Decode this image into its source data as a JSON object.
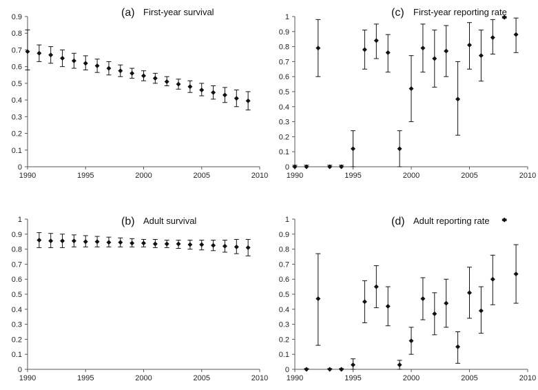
{
  "figure": {
    "x_ticks": [
      "1990",
      "1995",
      "2000",
      "2005",
      "2010"
    ],
    "x_tick_values": [
      1990,
      1995,
      2000,
      2005,
      2010
    ],
    "colors": {
      "marker": "#111111",
      "axis": "#555555"
    }
  },
  "chart_data": [
    {
      "type": "scatter",
      "id": "a",
      "label": "(a)",
      "title": "First-year survival",
      "xlim": [
        1990,
        2010
      ],
      "ylim": [
        0,
        0.9
      ],
      "y_ticks": [
        "0",
        "0.1",
        "0.2",
        "0.3",
        "0.4",
        "0.5",
        "0.6",
        "0.7",
        "0.8",
        "0.9"
      ],
      "y_tick_values": [
        0,
        0.1,
        0.2,
        0.3,
        0.4,
        0.5,
        0.6,
        0.7,
        0.8,
        0.9
      ],
      "error_bars": true,
      "points": [
        {
          "x": 1990,
          "y": 0.69,
          "lo": 0.58,
          "hi": 0.82
        },
        {
          "x": 1991,
          "y": 0.68,
          "lo": 0.63,
          "hi": 0.73
        },
        {
          "x": 1992,
          "y": 0.67,
          "lo": 0.62,
          "hi": 0.72
        },
        {
          "x": 1993,
          "y": 0.65,
          "lo": 0.6,
          "hi": 0.7
        },
        {
          "x": 1994,
          "y": 0.635,
          "lo": 0.59,
          "hi": 0.68
        },
        {
          "x": 1995,
          "y": 0.62,
          "lo": 0.58,
          "hi": 0.665
        },
        {
          "x": 1996,
          "y": 0.605,
          "lo": 0.565,
          "hi": 0.645
        },
        {
          "x": 1997,
          "y": 0.59,
          "lo": 0.55,
          "hi": 0.63
        },
        {
          "x": 1998,
          "y": 0.575,
          "lo": 0.54,
          "hi": 0.61
        },
        {
          "x": 1999,
          "y": 0.56,
          "lo": 0.53,
          "hi": 0.59
        },
        {
          "x": 2000,
          "y": 0.545,
          "lo": 0.515,
          "hi": 0.575
        },
        {
          "x": 2001,
          "y": 0.53,
          "lo": 0.5,
          "hi": 0.56
        },
        {
          "x": 2002,
          "y": 0.51,
          "lo": 0.485,
          "hi": 0.54
        },
        {
          "x": 2003,
          "y": 0.495,
          "lo": 0.465,
          "hi": 0.525
        },
        {
          "x": 2004,
          "y": 0.48,
          "lo": 0.445,
          "hi": 0.515
        },
        {
          "x": 2005,
          "y": 0.46,
          "lo": 0.425,
          "hi": 0.5
        },
        {
          "x": 2006,
          "y": 0.445,
          "lo": 0.405,
          "hi": 0.485
        },
        {
          "x": 2007,
          "y": 0.43,
          "lo": 0.385,
          "hi": 0.475
        },
        {
          "x": 2008,
          "y": 0.41,
          "lo": 0.36,
          "hi": 0.46
        },
        {
          "x": 2009,
          "y": 0.395,
          "lo": 0.34,
          "hi": 0.45
        }
      ]
    },
    {
      "type": "scatter",
      "id": "c",
      "label": "(c)",
      "title": "First-year reporting rate",
      "xlim": [
        1990,
        2010
      ],
      "ylim": [
        0,
        1
      ],
      "y_ticks": [
        "0",
        "0.1",
        "0.2",
        "0.3",
        "0.4",
        "0.5",
        "0.6",
        "0.7",
        "0.8",
        "0.9",
        "1"
      ],
      "y_tick_values": [
        0,
        0.1,
        0.2,
        0.3,
        0.4,
        0.5,
        0.6,
        0.7,
        0.8,
        0.9,
        1
      ],
      "error_bars": true,
      "points": [
        {
          "x": 1990,
          "y": 0.0,
          "lo": 0.0,
          "hi": 0.01
        },
        {
          "x": 1991,
          "y": 0.0,
          "lo": 0.0,
          "hi": 0.01
        },
        {
          "x": 1992,
          "y": 0.79,
          "lo": 0.6,
          "hi": 0.98
        },
        {
          "x": 1993,
          "y": 0.0,
          "lo": 0.0,
          "hi": 0.01
        },
        {
          "x": 1994,
          "y": 0.0,
          "lo": 0.0,
          "hi": 0.01
        },
        {
          "x": 1995,
          "y": 0.12,
          "lo": 0.0,
          "hi": 0.24
        },
        {
          "x": 1996,
          "y": 0.78,
          "lo": 0.65,
          "hi": 0.91
        },
        {
          "x": 1997,
          "y": 0.84,
          "lo": 0.72,
          "hi": 0.95
        },
        {
          "x": 1998,
          "y": 0.76,
          "lo": 0.63,
          "hi": 0.88
        },
        {
          "x": 1999,
          "y": 0.12,
          "lo": 0.0,
          "hi": 0.24
        },
        {
          "x": 2000,
          "y": 0.52,
          "lo": 0.3,
          "hi": 0.74
        },
        {
          "x": 2001,
          "y": 0.79,
          "lo": 0.63,
          "hi": 0.95
        },
        {
          "x": 2002,
          "y": 0.72,
          "lo": 0.53,
          "hi": 0.91
        },
        {
          "x": 2003,
          "y": 0.77,
          "lo": 0.6,
          "hi": 0.94
        },
        {
          "x": 2004,
          "y": 0.45,
          "lo": 0.21,
          "hi": 0.7
        },
        {
          "x": 2005,
          "y": 0.81,
          "lo": 0.65,
          "hi": 0.96
        },
        {
          "x": 2006,
          "y": 0.74,
          "lo": 0.57,
          "hi": 0.91
        },
        {
          "x": 2007,
          "y": 0.86,
          "lo": 0.75,
          "hi": 0.98
        },
        {
          "x": 2008,
          "y": 0.995,
          "lo": 0.99,
          "hi": 1.0
        },
        {
          "x": 2009,
          "y": 0.88,
          "lo": 0.76,
          "hi": 0.99
        }
      ]
    },
    {
      "type": "scatter",
      "id": "b",
      "label": "(b)",
      "title": "Adult survival",
      "xlim": [
        1990,
        2010
      ],
      "ylim": [
        0,
        1
      ],
      "y_ticks": [
        "0",
        "0.1",
        "0.2",
        "0.3",
        "0.4",
        "0.5",
        "0.6",
        "0.7",
        "0.8",
        "0.9",
        "1"
      ],
      "y_tick_values": [
        0,
        0.1,
        0.2,
        0.3,
        0.4,
        0.5,
        0.6,
        0.7,
        0.8,
        0.9,
        1
      ],
      "error_bars": true,
      "points": [
        {
          "x": 1991,
          "y": 0.86,
          "lo": 0.81,
          "hi": 0.91
        },
        {
          "x": 1992,
          "y": 0.855,
          "lo": 0.81,
          "hi": 0.905
        },
        {
          "x": 1993,
          "y": 0.855,
          "lo": 0.81,
          "hi": 0.9
        },
        {
          "x": 1994,
          "y": 0.855,
          "lo": 0.815,
          "hi": 0.895
        },
        {
          "x": 1995,
          "y": 0.85,
          "lo": 0.815,
          "hi": 0.89
        },
        {
          "x": 1996,
          "y": 0.85,
          "lo": 0.815,
          "hi": 0.885
        },
        {
          "x": 1997,
          "y": 0.845,
          "lo": 0.815,
          "hi": 0.88
        },
        {
          "x": 1998,
          "y": 0.845,
          "lo": 0.815,
          "hi": 0.875
        },
        {
          "x": 1999,
          "y": 0.84,
          "lo": 0.815,
          "hi": 0.87
        },
        {
          "x": 2000,
          "y": 0.84,
          "lo": 0.815,
          "hi": 0.865
        },
        {
          "x": 2001,
          "y": 0.835,
          "lo": 0.81,
          "hi": 0.865
        },
        {
          "x": 2002,
          "y": 0.835,
          "lo": 0.81,
          "hi": 0.86
        },
        {
          "x": 2003,
          "y": 0.835,
          "lo": 0.805,
          "hi": 0.86
        },
        {
          "x": 2004,
          "y": 0.83,
          "lo": 0.8,
          "hi": 0.86
        },
        {
          "x": 2005,
          "y": 0.83,
          "lo": 0.795,
          "hi": 0.86
        },
        {
          "x": 2006,
          "y": 0.825,
          "lo": 0.79,
          "hi": 0.86
        },
        {
          "x": 2007,
          "y": 0.82,
          "lo": 0.78,
          "hi": 0.86
        },
        {
          "x": 2008,
          "y": 0.815,
          "lo": 0.77,
          "hi": 0.865
        },
        {
          "x": 2009,
          "y": 0.81,
          "lo": 0.755,
          "hi": 0.865
        }
      ]
    },
    {
      "type": "scatter",
      "id": "d",
      "label": "(d)",
      "title": "Adult reporting rate",
      "xlim": [
        1990,
        2010
      ],
      "ylim": [
        0,
        1
      ],
      "y_ticks": [
        "0",
        "0.1",
        "0.2",
        "0.3",
        "0.4",
        "0.5",
        "0.6",
        "0.7",
        "0.8",
        "0.9",
        "1"
      ],
      "y_tick_values": [
        0,
        0.1,
        0.2,
        0.3,
        0.4,
        0.5,
        0.6,
        0.7,
        0.8,
        0.9,
        1
      ],
      "error_bars": true,
      "points": [
        {
          "x": 1991,
          "y": 0.0,
          "lo": 0.0,
          "hi": 0.005
        },
        {
          "x": 1992,
          "y": 0.47,
          "lo": 0.16,
          "hi": 0.77
        },
        {
          "x": 1993,
          "y": 0.0,
          "lo": 0.0,
          "hi": 0.005
        },
        {
          "x": 1994,
          "y": 0.0,
          "lo": 0.0,
          "hi": 0.005
        },
        {
          "x": 1995,
          "y": 0.03,
          "lo": 0.0,
          "hi": 0.07
        },
        {
          "x": 1996,
          "y": 0.45,
          "lo": 0.31,
          "hi": 0.59
        },
        {
          "x": 1997,
          "y": 0.55,
          "lo": 0.41,
          "hi": 0.69
        },
        {
          "x": 1998,
          "y": 0.42,
          "lo": 0.29,
          "hi": 0.55
        },
        {
          "x": 1999,
          "y": 0.03,
          "lo": 0.0,
          "hi": 0.06
        },
        {
          "x": 2000,
          "y": 0.19,
          "lo": 0.1,
          "hi": 0.28
        },
        {
          "x": 2001,
          "y": 0.47,
          "lo": 0.33,
          "hi": 0.61
        },
        {
          "x": 2002,
          "y": 0.37,
          "lo": 0.23,
          "hi": 0.51
        },
        {
          "x": 2003,
          "y": 0.44,
          "lo": 0.28,
          "hi": 0.6
        },
        {
          "x": 2004,
          "y": 0.15,
          "lo": 0.04,
          "hi": 0.25
        },
        {
          "x": 2005,
          "y": 0.51,
          "lo": 0.34,
          "hi": 0.68
        },
        {
          "x": 2006,
          "y": 0.39,
          "lo": 0.24,
          "hi": 0.55
        },
        {
          "x": 2007,
          "y": 0.6,
          "lo": 0.43,
          "hi": 0.76
        },
        {
          "x": 2008,
          "y": 0.995,
          "lo": 0.99,
          "hi": 1.0
        },
        {
          "x": 2009,
          "y": 0.635,
          "lo": 0.44,
          "hi": 0.83
        }
      ]
    }
  ]
}
